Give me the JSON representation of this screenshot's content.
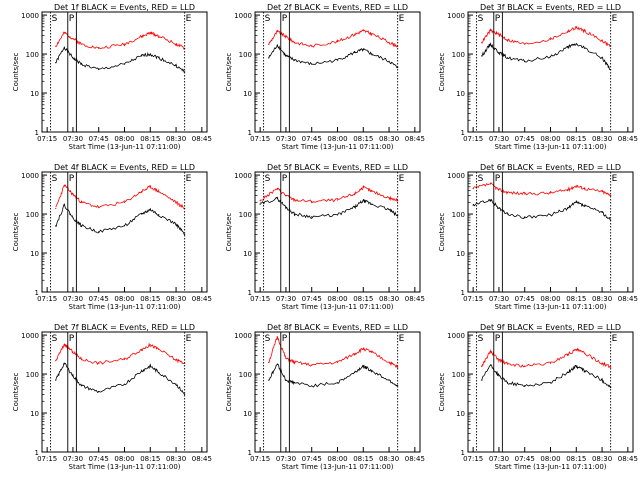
{
  "x_ticks": [
    "07:15",
    "07:30",
    "07:45",
    "08:00",
    "08:15",
    "08:30",
    "08:45"
  ],
  "y_ticks": [
    "1",
    "10",
    "100",
    "1000"
  ],
  "xlabel": "Start Time (13-Jun-11 07:11:00)",
  "ylabel": "Counts/sec",
  "colors": {
    "events": "#000000",
    "lld": "#ff0000",
    "axes": "#000000"
  },
  "chart_data": [
    {
      "type": "line",
      "title": "Det 1f BLACK = Events, RED = LLD",
      "x": [
        "07:20",
        "07:25",
        "07:30",
        "07:35",
        "07:45",
        "08:00",
        "08:10",
        "08:15",
        "08:20",
        "08:30",
        "08:35"
      ],
      "series": [
        {
          "color": "#000000",
          "values": [
            60,
            150,
            80,
            55,
            40,
            55,
            90,
            100,
            80,
            50,
            35
          ]
        },
        {
          "color": "#ff0000",
          "values": [
            160,
            350,
            250,
            180,
            140,
            180,
            280,
            350,
            290,
            180,
            140
          ]
        }
      ],
      "annotations": [
        "S",
        "P",
        "E"
      ]
    },
    {
      "type": "line",
      "title": "Det 2f BLACK = Events, RED = LLD",
      "x": [
        "07:20",
        "07:25",
        "07:30",
        "07:35",
        "07:45",
        "08:00",
        "08:10",
        "08:15",
        "08:20",
        "08:30",
        "08:35"
      ],
      "series": [
        {
          "color": "#000000",
          "values": [
            80,
            170,
            90,
            70,
            55,
            70,
            110,
            130,
            100,
            65,
            45
          ]
        },
        {
          "color": "#ff0000",
          "values": [
            180,
            380,
            280,
            200,
            160,
            210,
            320,
            400,
            330,
            200,
            160
          ]
        }
      ],
      "annotations": [
        "S",
        "P",
        "E"
      ]
    },
    {
      "type": "line",
      "title": "Det 3f BLACK = Events, RED = LLD",
      "x": [
        "07:20",
        "07:25",
        "07:30",
        "07:35",
        "07:45",
        "08:00",
        "08:10",
        "08:15",
        "08:20",
        "08:30",
        "08:35"
      ],
      "series": [
        {
          "color": "#000000",
          "values": [
            90,
            180,
            110,
            80,
            65,
            85,
            150,
            180,
            140,
            80,
            40
          ]
        },
        {
          "color": "#ff0000",
          "values": [
            200,
            400,
            320,
            230,
            180,
            240,
            380,
            480,
            390,
            220,
            160
          ]
        }
      ],
      "annotations": [
        "S",
        "P",
        "E"
      ]
    },
    {
      "type": "line",
      "title": "Det 4f BLACK = Events, RED = LLD",
      "x": [
        "07:20",
        "07:25",
        "07:30",
        "07:35",
        "07:45",
        "08:00",
        "08:10",
        "08:15",
        "08:20",
        "08:30",
        "08:35"
      ],
      "series": [
        {
          "color": "#000000",
          "values": [
            50,
            170,
            80,
            50,
            35,
            50,
            100,
            130,
            95,
            55,
            30
          ]
        },
        {
          "color": "#ff0000",
          "values": [
            140,
            550,
            320,
            200,
            150,
            200,
            380,
            500,
            380,
            200,
            140
          ]
        }
      ],
      "annotations": [
        "S",
        "P",
        "E"
      ]
    },
    {
      "type": "line",
      "title": "Det 5f BLACK = Events, RED = LLD",
      "x": [
        "07:15",
        "07:25",
        "07:30",
        "07:35",
        "07:45",
        "08:00",
        "08:10",
        "08:15",
        "08:20",
        "08:30",
        "08:35"
      ],
      "series": [
        {
          "color": "#000000",
          "values": [
            180,
            250,
            150,
            100,
            85,
            95,
            150,
            220,
            180,
            130,
            90
          ]
        },
        {
          "color": "#ff0000",
          "values": [
            220,
            450,
            300,
            230,
            210,
            230,
            330,
            480,
            380,
            260,
            220
          ]
        }
      ],
      "annotations": [
        "S",
        "P",
        "E"
      ]
    },
    {
      "type": "line",
      "title": "Det 6f BLACK = Events, RED = LLD",
      "x": [
        "07:15",
        "07:25",
        "07:30",
        "07:35",
        "07:45",
        "08:00",
        "08:10",
        "08:15",
        "08:20",
        "08:30",
        "08:35"
      ],
      "series": [
        {
          "color": "#000000",
          "values": [
            170,
            230,
            140,
            100,
            80,
            95,
            140,
            200,
            160,
            110,
            70
          ]
        },
        {
          "color": "#ff0000",
          "values": [
            450,
            600,
            420,
            360,
            330,
            350,
            420,
            530,
            450,
            380,
            300
          ]
        }
      ],
      "annotations": [
        "S",
        "P",
        "E"
      ]
    },
    {
      "type": "line",
      "title": "Det 7f BLACK = Events, RED = LLD",
      "x": [
        "07:20",
        "07:25",
        "07:30",
        "07:35",
        "07:45",
        "08:00",
        "08:10",
        "08:15",
        "08:20",
        "08:30",
        "08:35"
      ],
      "series": [
        {
          "color": "#000000",
          "values": [
            70,
            190,
            90,
            50,
            35,
            55,
            120,
            160,
            110,
            55,
            30
          ]
        },
        {
          "color": "#ff0000",
          "values": [
            220,
            580,
            370,
            240,
            190,
            240,
            430,
            560,
            430,
            230,
            190
          ]
        }
      ],
      "annotations": [
        "S",
        "P",
        "E"
      ]
    },
    {
      "type": "line",
      "title": "Det 8f BLACK = Events, RED = LLD",
      "x": [
        "07:20",
        "07:25",
        "07:30",
        "07:35",
        "07:45",
        "08:00",
        "08:10",
        "08:15",
        "08:20",
        "08:30",
        "08:35"
      ],
      "series": [
        {
          "color": "#000000",
          "values": [
            70,
            180,
            70,
            60,
            50,
            60,
            110,
            160,
            120,
            70,
            50
          ]
        },
        {
          "color": "#ff0000",
          "values": [
            200,
            900,
            250,
            200,
            170,
            200,
            330,
            450,
            360,
            200,
            150
          ]
        }
      ],
      "annotations": [
        "S",
        "P",
        "E"
      ]
    },
    {
      "type": "line",
      "title": "Det 9f BLACK = Events, RED = LLD",
      "x": [
        "07:20",
        "07:25",
        "07:30",
        "07:35",
        "07:45",
        "08:00",
        "08:10",
        "08:15",
        "08:20",
        "08:30",
        "08:35"
      ],
      "series": [
        {
          "color": "#000000",
          "values": [
            70,
            170,
            90,
            60,
            50,
            60,
            110,
            160,
            120,
            70,
            45
          ]
        },
        {
          "color": "#ff0000",
          "values": [
            160,
            380,
            230,
            180,
            160,
            190,
            320,
            420,
            340,
            190,
            150
          ]
        }
      ],
      "annotations": [
        "S",
        "P",
        "E"
      ]
    }
  ]
}
